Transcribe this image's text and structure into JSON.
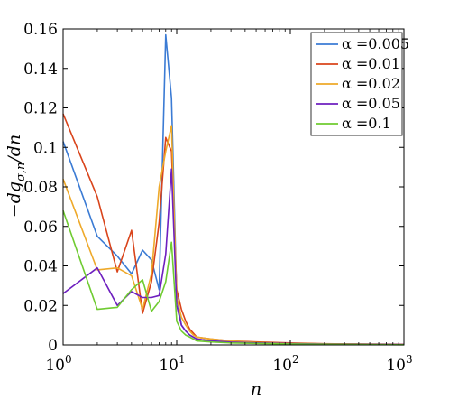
{
  "chart_data": {
    "type": "line",
    "xlabel": "n",
    "ylabel": "−dg",
    "ylabel_sub": "σ,n",
    "ylabel_tail": "/dn",
    "xscale": "log",
    "xlim": [
      1,
      1000
    ],
    "ylim": [
      0,
      0.16
    ],
    "grid": false,
    "legend_position": "top-right",
    "x_ticks": [
      {
        "value": 1,
        "base": "10",
        "exp": "0"
      },
      {
        "value": 10,
        "base": "10",
        "exp": "1"
      },
      {
        "value": 100,
        "base": "10",
        "exp": "2"
      },
      {
        "value": 1000,
        "base": "10",
        "exp": "3"
      }
    ],
    "y_ticks": [
      {
        "value": 0,
        "label": "0"
      },
      {
        "value": 0.02,
        "label": "0.02"
      },
      {
        "value": 0.04,
        "label": "0.04"
      },
      {
        "value": 0.06,
        "label": "0.06"
      },
      {
        "value": 0.08,
        "label": "0.08"
      },
      {
        "value": 0.1,
        "label": "0.1"
      },
      {
        "value": 0.12,
        "label": "0.12"
      },
      {
        "value": 0.14,
        "label": "0.14"
      },
      {
        "value": 0.16,
        "label": "0.16"
      }
    ],
    "x": [
      1,
      2,
      3,
      4,
      5,
      6,
      7,
      8,
      9,
      10,
      11,
      12,
      13,
      14,
      15,
      20,
      30,
      50,
      100,
      200,
      500,
      1000
    ],
    "series": [
      {
        "name": "α =0.005",
        "color": "#3b7bd4",
        "values": [
          0.103,
          0.055,
          0.045,
          0.036,
          0.048,
          0.043,
          0.028,
          0.157,
          0.125,
          0.025,
          0.01,
          0.007,
          0.005,
          0.004,
          0.003,
          0.002,
          0.0015,
          0.001,
          0.0008,
          0.0005,
          0.0003,
          0.0002
        ]
      },
      {
        "name": "α =0.01",
        "color": "#d9441b",
        "values": [
          0.117,
          0.075,
          0.037,
          0.058,
          0.016,
          0.032,
          0.062,
          0.105,
          0.098,
          0.028,
          0.018,
          0.012,
          0.008,
          0.006,
          0.004,
          0.003,
          0.002,
          0.0015,
          0.001,
          0.0006,
          0.0004,
          0.0003
        ]
      },
      {
        "name": "α =0.02",
        "color": "#eea92a",
        "values": [
          0.084,
          0.038,
          0.039,
          0.035,
          0.018,
          0.036,
          0.08,
          0.098,
          0.111,
          0.024,
          0.014,
          0.01,
          0.007,
          0.005,
          0.004,
          0.003,
          0.002,
          0.0012,
          0.0008,
          0.0005,
          0.0003,
          0.0002
        ]
      },
      {
        "name": "α =0.05",
        "color": "#6e1fbf",
        "values": [
          0.026,
          0.039,
          0.02,
          0.027,
          0.024,
          0.024,
          0.025,
          0.046,
          0.089,
          0.02,
          0.01,
          0.007,
          0.005,
          0.004,
          0.003,
          0.002,
          0.0014,
          0.001,
          0.0007,
          0.0004,
          0.0003,
          0.0002
        ]
      },
      {
        "name": "α =0.1",
        "color": "#6fcb31",
        "values": [
          0.068,
          0.018,
          0.019,
          0.028,
          0.033,
          0.017,
          0.022,
          0.032,
          0.052,
          0.012,
          0.007,
          0.005,
          0.004,
          0.003,
          0.002,
          0.0015,
          0.001,
          0.0008,
          0.0005,
          0.0003,
          0.0002,
          0.0001
        ]
      }
    ]
  }
}
